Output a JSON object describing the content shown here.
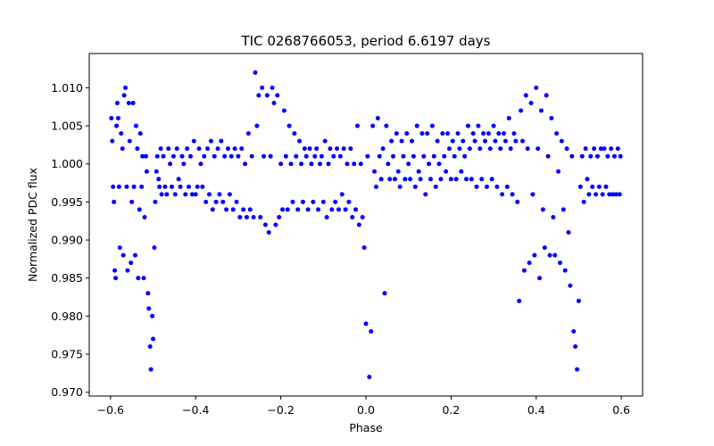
{
  "chart_data": {
    "type": "scatter",
    "title": "TIC 0268766053, period 6.6197 days",
    "xlabel": "Phase",
    "ylabel": "Normalized PDC flux",
    "xlim": [
      -0.65,
      0.65
    ],
    "ylim": [
      0.9695,
      1.0145
    ],
    "xticks": [
      -0.6,
      -0.4,
      -0.2,
      0.0,
      0.2,
      0.4,
      0.6
    ],
    "xtick_labels": [
      "−0.6",
      "−0.4",
      "−0.2",
      "0.0",
      "0.2",
      "0.4",
      "0.6"
    ],
    "yticks": [
      0.97,
      0.975,
      0.98,
      0.985,
      0.99,
      0.995,
      1.0,
      1.005,
      1.01
    ],
    "ytick_labels": [
      "0.970",
      "0.975",
      "0.980",
      "0.985",
      "0.990",
      "0.995",
      "1.000",
      "1.005",
      "1.010"
    ],
    "marker_color": "#0000ff",
    "grid": false,
    "series": [
      {
        "name": "",
        "x": [
          -0.598,
          -0.596,
          -0.594,
          -0.592,
          -0.59,
          -0.588,
          -0.586,
          -0.584,
          -0.582,
          -0.58,
          -0.578,
          -0.575,
          -0.572,
          -0.57,
          -0.568,
          -0.565,
          -0.562,
          -0.56,
          -0.557,
          -0.555,
          -0.552,
          -0.55,
          -0.547,
          -0.545,
          -0.542,
          -0.54,
          -0.537,
          -0.535,
          -0.532,
          -0.53,
          -0.527,
          -0.525,
          -0.522,
          -0.52,
          -0.517,
          -0.515,
          -0.512,
          -0.51,
          -0.507,
          -0.505,
          -0.502,
          -0.5,
          -0.497,
          -0.495,
          -0.492,
          -0.49,
          -0.487,
          -0.485,
          -0.482,
          -0.48,
          -0.476,
          -0.472,
          -0.468,
          -0.464,
          -0.46,
          -0.456,
          -0.452,
          -0.448,
          -0.444,
          -0.44,
          -0.436,
          -0.432,
          -0.428,
          -0.424,
          -0.42,
          -0.416,
          -0.412,
          -0.408,
          -0.404,
          -0.4,
          -0.396,
          -0.392,
          -0.388,
          -0.384,
          -0.38,
          -0.376,
          -0.372,
          -0.368,
          -0.364,
          -0.36,
          -0.356,
          -0.352,
          -0.348,
          -0.344,
          -0.34,
          -0.336,
          -0.332,
          -0.328,
          -0.324,
          -0.32,
          -0.316,
          -0.312,
          -0.308,
          -0.304,
          -0.3,
          -0.296,
          -0.292,
          -0.288,
          -0.284,
          -0.28,
          -0.276,
          -0.272,
          -0.268,
          -0.264,
          -0.26,
          -0.256,
          -0.252,
          -0.248,
          -0.244,
          -0.24,
          -0.236,
          -0.232,
          -0.228,
          -0.224,
          -0.22,
          -0.216,
          -0.212,
          -0.208,
          -0.204,
          -0.2,
          -0.196,
          -0.192,
          -0.188,
          -0.184,
          -0.18,
          -0.176,
          -0.172,
          -0.168,
          -0.164,
          -0.16,
          -0.156,
          -0.152,
          -0.148,
          -0.144,
          -0.14,
          -0.136,
          -0.132,
          -0.128,
          -0.124,
          -0.12,
          -0.116,
          -0.112,
          -0.108,
          -0.104,
          -0.1,
          -0.096,
          -0.092,
          -0.088,
          -0.084,
          -0.08,
          -0.076,
          -0.072,
          -0.068,
          -0.064,
          -0.06,
          -0.056,
          -0.052,
          -0.048,
          -0.044,
          -0.04,
          -0.036,
          -0.032,
          -0.028,
          -0.024,
          -0.02,
          -0.016,
          -0.012,
          -0.008,
          -0.004,
          0.0,
          0.004,
          0.008,
          0.012,
          0.016,
          0.02,
          0.024,
          0.028,
          0.032,
          0.036,
          0.04,
          0.044,
          0.048,
          0.052,
          0.056,
          0.06,
          0.064,
          0.068,
          0.072,
          0.076,
          0.08,
          0.084,
          0.088,
          0.092,
          0.096,
          0.1,
          0.104,
          0.108,
          0.112,
          0.116,
          0.12,
          0.124,
          0.128,
          0.132,
          0.136,
          0.14,
          0.144,
          0.148,
          0.152,
          0.156,
          0.16,
          0.164,
          0.168,
          0.172,
          0.176,
          0.18,
          0.184,
          0.188,
          0.192,
          0.196,
          0.2,
          0.204,
          0.208,
          0.212,
          0.216,
          0.22,
          0.224,
          0.228,
          0.232,
          0.236,
          0.24,
          0.244,
          0.248,
          0.252,
          0.256,
          0.26,
          0.264,
          0.268,
          0.272,
          0.276,
          0.28,
          0.284,
          0.288,
          0.292,
          0.296,
          0.3,
          0.304,
          0.308,
          0.312,
          0.316,
          0.32,
          0.324,
          0.328,
          0.332,
          0.336,
          0.34,
          0.344,
          0.348,
          0.352,
          0.356,
          0.36,
          0.364,
          0.368,
          0.372,
          0.376,
          0.38,
          0.384,
          0.388,
          0.392,
          0.396,
          0.4,
          0.404,
          0.408,
          0.412,
          0.416,
          0.42,
          0.424,
          0.428,
          0.432,
          0.436,
          0.44,
          0.444,
          0.448,
          0.452,
          0.456,
          0.46,
          0.464,
          0.468,
          0.472,
          0.476,
          0.48,
          0.484,
          0.488,
          0.492,
          0.496,
          0.5,
          0.504,
          0.508,
          0.512,
          0.516,
          0.52,
          0.524,
          0.528,
          0.532,
          0.536,
          0.54,
          0.544,
          0.548,
          0.552,
          0.556,
          0.56,
          0.564,
          0.568,
          0.572,
          0.576,
          0.58,
          0.584,
          0.588,
          0.592,
          0.596,
          0.598
        ],
        "y": [
          1.006,
          1.003,
          0.997,
          0.995,
          0.986,
          0.985,
          1.005,
          1.008,
          1.006,
          0.997,
          0.989,
          1.004,
          1.002,
          0.988,
          1.009,
          1.01,
          0.997,
          0.986,
          1.008,
          1.003,
          0.987,
          0.995,
          1.008,
          0.997,
          0.988,
          1.005,
          1.002,
          0.985,
          0.994,
          1.004,
          0.997,
          1.001,
          0.985,
          0.993,
          1.001,
          0.999,
          0.983,
          0.981,
          0.976,
          0.973,
          0.98,
          0.977,
          0.989,
          0.995,
          0.999,
          1.001,
          0.998,
          0.997,
          1.002,
          0.996,
          1.001,
          0.997,
          0.996,
          1.002,
          1.0,
          0.997,
          1.001,
          0.996,
          1.002,
          0.998,
          0.997,
          1.001,
          1.0,
          0.996,
          1.002,
          0.997,
          1.001,
          0.996,
          1.003,
          0.996,
          0.997,
          1.002,
          1.0,
          0.997,
          1.001,
          0.995,
          1.002,
          0.996,
          1.003,
          0.994,
          1.001,
          0.995,
          1.002,
          0.996,
          1.003,
          0.995,
          1.001,
          0.994,
          1.002,
          0.996,
          1.001,
          0.994,
          1.002,
          0.995,
          1.001,
          0.993,
          1.002,
          0.994,
          1.0,
          0.993,
          1.004,
          0.994,
          1.001,
          0.993,
          1.012,
          1.005,
          1.009,
          0.993,
          1.01,
          1.001,
          0.992,
          1.009,
          0.991,
          1.001,
          1.01,
          1.008,
          0.992,
          1.009,
          0.993,
          1.0,
          0.994,
          1.007,
          1.001,
          0.994,
          1.005,
          1.0,
          0.995,
          1.004,
          1.001,
          0.994,
          1.003,
          1.0,
          0.995,
          1.002,
          1.001,
          0.994,
          1.002,
          1.0,
          0.995,
          1.001,
          1.002,
          0.994,
          1.0,
          1.001,
          0.995,
          1.003,
          0.993,
          1.0,
          1.002,
          0.994,
          1.001,
          0.995,
          1.002,
          0.994,
          1.001,
          0.996,
          1.002,
          0.994,
          1.0,
          0.995,
          1.002,
          0.993,
          1.0,
          0.994,
          1.005,
          0.992,
          1.0,
          0.993,
          0.989,
          0.979,
          1.001,
          0.972,
          0.978,
          1.005,
          0.999,
          0.997,
          1.006,
          1.001,
          0.998,
          1.002,
          0.983,
          1.005,
          1.0,
          0.998,
          1.003,
          1.001,
          0.998,
          1.004,
          0.999,
          0.997,
          1.003,
          1.001,
          0.998,
          1.004,
          1.0,
          0.998,
          1.003,
          1.001,
          0.997,
          1.005,
          0.999,
          0.998,
          1.004,
          1.001,
          0.996,
          1.004,
          1.0,
          0.998,
          1.005,
          1.001,
          0.997,
          1.003,
          1.0,
          0.998,
          1.004,
          1.001,
          0.999,
          1.004,
          1.002,
          0.998,
          1.003,
          1.001,
          0.998,
          1.004,
          1.002,
          0.999,
          1.003,
          1.001,
          0.998,
          1.005,
          1.002,
          0.998,
          1.004,
          1.003,
          0.997,
          1.005,
          1.002,
          0.998,
          1.004,
          1.003,
          0.997,
          1.004,
          1.002,
          0.998,
          1.005,
          1.003,
          0.997,
          1.004,
          1.002,
          0.996,
          1.004,
          1.003,
          0.997,
          1.006,
          1.002,
          0.996,
          1.004,
          1.003,
          0.995,
          0.982,
          1.007,
          1.003,
          0.986,
          1.009,
          1.002,
          0.987,
          1.008,
          0.996,
          0.988,
          1.01,
          1.002,
          0.985,
          1.007,
          0.994,
          0.989,
          1.009,
          1.001,
          0.988,
          1.006,
          0.993,
          0.988,
          1.004,
          0.999,
          0.987,
          1.003,
          0.994,
          0.986,
          1.002,
          0.991,
          0.984,
          1.001,
          0.978,
          0.976,
          0.973,
          0.982,
          0.997,
          1.001,
          0.995,
          1.002,
          0.998,
          0.996,
          1.001,
          0.997,
          1.002,
          0.996,
          1.001,
          0.997,
          1.002,
          0.996,
          1.002,
          0.997,
          1.001,
          0.996,
          1.002,
          0.996,
          1.001,
          0.996,
          1.002,
          0.996,
          1.001
        ]
      }
    ]
  }
}
